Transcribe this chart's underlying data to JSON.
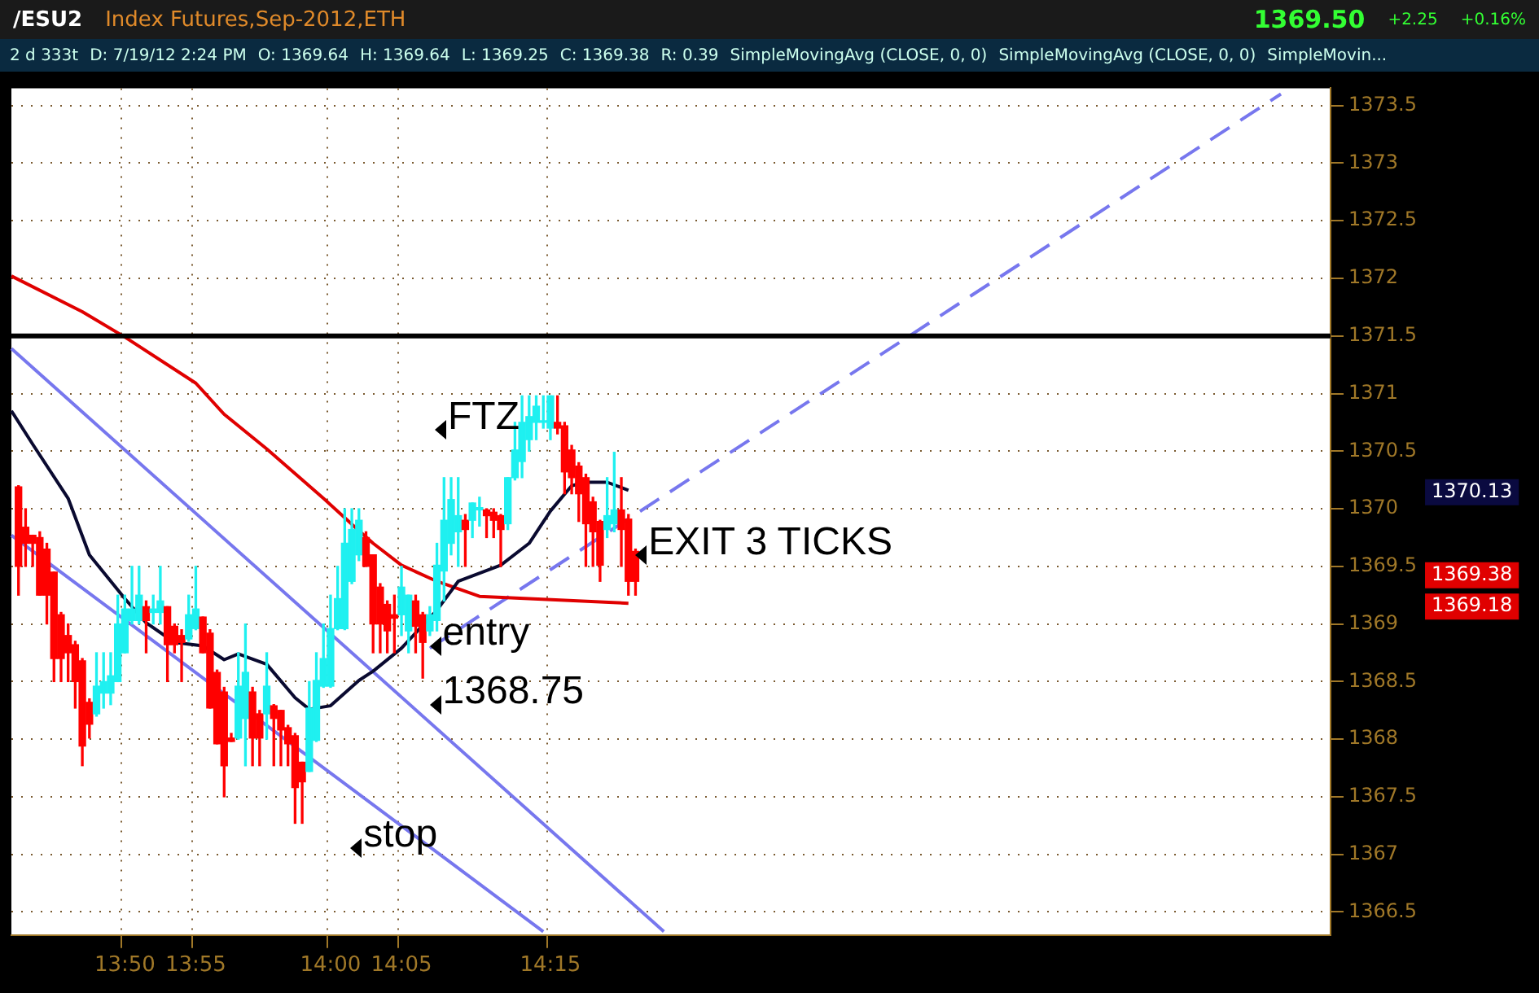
{
  "chart_data": {
    "type": "candlestick",
    "title": "/ESU2",
    "subtitle": "Index Futures,Sep-2012,ETH",
    "categories": [
      null,
      null,
      null,
      null,
      null,
      null,
      null,
      null,
      null,
      null,
      null,
      null,
      null,
      null,
      null,
      null,
      "13:50",
      null,
      null,
      null,
      null,
      null,
      null,
      null,
      null,
      null,
      "13:55",
      null,
      null,
      null,
      null,
      null,
      null,
      null,
      null,
      null,
      null,
      null,
      null,
      null,
      null,
      null,
      null,
      null,
      null,
      "14:00",
      null,
      null,
      null,
      null,
      null,
      null,
      null,
      null,
      null,
      "14:05",
      null,
      null,
      null,
      null,
      null,
      null,
      null,
      null,
      null,
      null,
      null,
      null,
      null,
      null,
      null,
      null,
      null,
      null,
      null,
      null,
      "14:15",
      null,
      null,
      null,
      null,
      null,
      null,
      null,
      null,
      null,
      null,
      null,
      null,
      null,
      null,
      null,
      null,
      null,
      null,
      null,
      null,
      null,
      null,
      null,
      null,
      null,
      null,
      null,
      null,
      null,
      null,
      null,
      null,
      null,
      null,
      null,
      null,
      null,
      null,
      null,
      null,
      null,
      null,
      null,
      null,
      null,
      null,
      null,
      null,
      null,
      null,
      null,
      null,
      null,
      null,
      null,
      null,
      null,
      null,
      null,
      null,
      null,
      null,
      null,
      null,
      null,
      null,
      null,
      null,
      null,
      null,
      null,
      null,
      null,
      null,
      null,
      null,
      null,
      null,
      null,
      null,
      null,
      null,
      null,
      null,
      null,
      null,
      null,
      null,
      null,
      null,
      null,
      null,
      null,
      null,
      null,
      null,
      null,
      null,
      null,
      null,
      null,
      null,
      null,
      null,
      null,
      null,
      null,
      null,
      null,
      null
    ],
    "ohlc": [
      null,
      [
        1370.19,
        1370.2,
        1369.25,
        1369.5
      ],
      [
        1369.84,
        1370.0,
        1369.5,
        1369.7
      ],
      [
        1369.77,
        1369.77,
        1369.5,
        1369.7
      ],
      [
        1369.75,
        1369.8,
        1369.25,
        1369.25
      ],
      [
        1369.65,
        1369.7,
        1369.0,
        1369.25
      ],
      [
        1369.45,
        1369.45,
        1368.5,
        1368.7
      ],
      [
        1369.08,
        1369.1,
        1368.5,
        1368.7
      ],
      [
        1368.9,
        1369.0,
        1368.5,
        1368.75
      ],
      [
        1368.82,
        1368.85,
        1368.27,
        1368.5
      ],
      [
        1368.68,
        1368.7,
        1367.77,
        1367.94
      ],
      [
        1368.32,
        1368.35,
        1368.01,
        1368.13
      ],
      [
        1368.22,
        1368.75,
        1368.2,
        1368.46
      ],
      [
        1368.4,
        1368.75,
        1368.27,
        1368.5
      ],
      [
        1368.4,
        1368.75,
        1368.3,
        1368.55
      ],
      [
        1368.5,
        1369.25,
        1368.5,
        1369.0
      ],
      [
        1368.75,
        1369.25,
        1368.75,
        1369.13
      ],
      [
        1369.03,
        1369.5,
        1369.0,
        1369.13
      ],
      [
        1369.03,
        1369.5,
        1369.0,
        1369.25
      ],
      [
        1369.15,
        1369.2,
        1368.75,
        1369.03
      ],
      [
        1369.1,
        1369.25,
        1369.0,
        1369.13
      ],
      [
        1369.1,
        1369.5,
        1369.0,
        1369.2
      ],
      [
        1369.15,
        1369.15,
        1368.5,
        1368.82
      ],
      [
        1368.98,
        1369.0,
        1368.75,
        1368.82
      ],
      [
        1368.9,
        1368.95,
        1368.5,
        1368.84
      ],
      [
        1368.87,
        1369.25,
        1368.85,
        1369.08
      ],
      [
        1368.96,
        1369.5,
        1368.95,
        1369.13
      ],
      [
        1369.06,
        1369.06,
        1368.75,
        1368.75
      ],
      [
        1368.92,
        1368.95,
        1368.27,
        1368.27
      ],
      [
        1368.58,
        1368.6,
        1367.96,
        1367.96
      ],
      [
        1368.41,
        1368.45,
        1367.5,
        1367.77
      ],
      [
        1368.01,
        1368.05,
        1367.98,
        1367.98
      ],
      [
        1368.01,
        1368.75,
        1368.0,
        1368.46
      ],
      [
        1368.18,
        1369.0,
        1367.77,
        1368.58
      ],
      [
        1368.41,
        1368.45,
        1367.77,
        1368.01
      ],
      [
        1368.22,
        1368.25,
        1367.77,
        1368.01
      ],
      [
        1368.22,
        1368.75,
        1368.0,
        1368.46
      ],
      [
        1368.29,
        1368.3,
        1367.77,
        1368.18
      ],
      [
        1368.25,
        1368.25,
        1367.77,
        1368.08
      ],
      [
        1368.1,
        1368.12,
        1367.77,
        1367.96
      ],
      [
        1368.03,
        1368.05,
        1367.27,
        1367.58
      ],
      [
        1367.8,
        1367.8,
        1367.27,
        1367.63
      ],
      [
        1367.72,
        1368.5,
        1367.72,
        1368.27
      ],
      [
        1367.99,
        1368.75,
        1367.98,
        1368.51
      ],
      [
        1368.46,
        1369.0,
        1368.45,
        1368.7
      ],
      [
        1368.46,
        1369.25,
        1368.45,
        1368.96
      ],
      [
        1368.96,
        1369.5,
        1368.95,
        1369.22
      ],
      [
        1368.96,
        1370.0,
        1368.95,
        1369.7
      ],
      [
        1369.37,
        1370.0,
        1369.35,
        1369.82
      ],
      [
        1369.6,
        1370.0,
        1369.55,
        1369.9
      ],
      [
        1369.75,
        1369.8,
        1369.5,
        1369.5
      ],
      [
        1369.6,
        1369.6,
        1368.75,
        1369.0
      ],
      [
        1369.32,
        1369.35,
        1368.75,
        1369.0
      ],
      [
        1369.17,
        1369.2,
        1368.75,
        1368.94
      ],
      [
        1369.08,
        1369.25,
        1368.75,
        1369.05
      ],
      [
        1369.08,
        1369.5,
        1368.9,
        1369.32
      ],
      [
        1368.94,
        1369.25,
        1368.75,
        1369.25
      ],
      [
        1369.2,
        1369.25,
        1368.75,
        1368.98
      ],
      [
        1369.08,
        1369.1,
        1368.53,
        1368.84
      ],
      [
        1368.94,
        1369.15,
        1368.9,
        1369.08
      ],
      [
        1369.03,
        1369.7,
        1368.94,
        1369.51
      ],
      [
        1369.46,
        1370.27,
        1369.2,
        1369.9
      ],
      [
        1369.7,
        1370.27,
        1369.6,
        1370.08
      ],
      [
        1369.8,
        1370.27,
        1369.5,
        1369.94
      ],
      [
        1369.9,
        1369.95,
        1369.5,
        1369.82
      ],
      [
        1369.9,
        1370.05,
        1369.75,
        1370.05
      ],
      [
        1369.99,
        1370.1,
        1369.85,
        1370.01
      ],
      [
        1369.99,
        1370.0,
        1369.75,
        1369.94
      ],
      [
        1369.97,
        1370.0,
        1369.75,
        1369.9
      ],
      [
        1369.94,
        1369.95,
        1369.5,
        1369.82
      ],
      [
        1369.87,
        1370.27,
        1369.82,
        1370.27
      ],
      [
        1370.27,
        1370.75,
        1370.25,
        1370.51
      ],
      [
        1370.41,
        1370.98,
        1370.27,
        1370.75
      ],
      [
        1370.6,
        1370.98,
        1370.5,
        1370.8
      ],
      [
        1370.75,
        1370.98,
        1370.6,
        1370.89
      ],
      [
        1370.75,
        1370.98,
        1370.7,
        1370.76
      ],
      [
        1370.7,
        1370.98,
        1370.6,
        1370.98
      ],
      [
        1370.75,
        1370.98,
        1370.65,
        1370.7
      ],
      [
        1370.72,
        1370.75,
        1370.13,
        1370.32
      ],
      [
        1370.51,
        1370.55,
        1370.13,
        1370.27
      ],
      [
        1370.37,
        1370.4,
        1369.89,
        1370.13
      ],
      [
        1370.27,
        1370.3,
        1369.5,
        1369.87
      ],
      [
        1370.06,
        1370.1,
        1369.5,
        1369.8
      ],
      [
        1369.89,
        1369.9,
        1369.37,
        1369.51
      ],
      [
        1369.82,
        1370.27,
        1369.75,
        1369.94
      ],
      [
        1369.87,
        1370.49,
        1369.8,
        1369.99
      ],
      [
        1369.99,
        1370.27,
        1369.5,
        1369.82
      ],
      [
        1369.91,
        1369.95,
        1369.25,
        1369.37
      ],
      [
        1369.63,
        1369.65,
        1369.25,
        1369.37
      ],
      null,
      null,
      null,
      null,
      null,
      null,
      null,
      null,
      null,
      null,
      null,
      null,
      null,
      null,
      null,
      null,
      null,
      null,
      null,
      null,
      null,
      null,
      null,
      null,
      null,
      null,
      null,
      null,
      null,
      null,
      null,
      null,
      null,
      null,
      null,
      null,
      null,
      null,
      null,
      null,
      null,
      null,
      null,
      null,
      null,
      null,
      null,
      null,
      null,
      null,
      null,
      null,
      null,
      null,
      null,
      null,
      null,
      null,
      null,
      null,
      null,
      null,
      null,
      null,
      null,
      null,
      null,
      null,
      null,
      null,
      null,
      null,
      null,
      null,
      null,
      null,
      null,
      null,
      null,
      null,
      null,
      null,
      null,
      null,
      null,
      null,
      null,
      null,
      null,
      null,
      null,
      null,
      null,
      null,
      null,
      null,
      null,
      null
    ],
    "colors": [
      null,
      "#ff0000",
      "#ff0000",
      "#ff0000",
      "#ff0000",
      "#ff0000",
      "#ff0000",
      "#ff0000",
      "#ff0000",
      "#ff0000",
      "#ff0000",
      "#ff0000",
      "#1ff0f0",
      "#1ff0f0",
      "#1ff0f0",
      "#1ff0f0",
      "#1ff0f0",
      "#1ff0f0",
      "#1ff0f0",
      "#ff0000",
      "#1ff0f0",
      "#1ff0f0",
      "#ff0000",
      "#ff0000",
      "#ff0000",
      "#1ff0f0",
      "#1ff0f0",
      "#ff0000",
      "#ff0000",
      "#ff0000",
      "#ff0000",
      "#ff0000",
      "#1ff0f0",
      "#1ff0f0",
      "#ff0000",
      "#ff0000",
      "#1ff0f0",
      "#ff0000",
      "#ff0000",
      "#ff0000",
      "#ff0000",
      "#ff0000",
      "#1ff0f0",
      "#1ff0f0",
      "#1ff0f0",
      "#1ff0f0",
      "#1ff0f0",
      "#1ff0f0",
      "#1ff0f0",
      "#1ff0f0",
      "#ff0000",
      "#ff0000",
      "#ff0000",
      "#ff0000",
      "#ff0000",
      "#1ff0f0",
      "#1ff0f0",
      "#ff0000",
      "#ff0000",
      "#1ff0f0",
      "#1ff0f0",
      "#1ff0f0",
      "#1ff0f0",
      "#1ff0f0",
      "#ff0000",
      "#1ff0f0",
      "#1ff0f0",
      "#ff0000",
      "#ff0000",
      "#ff0000",
      "#1ff0f0",
      "#1ff0f0",
      "#1ff0f0",
      "#1ff0f0",
      "#1ff0f0",
      "#1ff0f0",
      "#1ff0f0",
      "#ff0000",
      "#ff0000",
      "#ff0000",
      "#ff0000",
      "#ff0000",
      "#ff0000",
      "#ff0000",
      "#1ff0f0",
      "#1ff0f0",
      "#ff0000",
      "#ff0000",
      "#ff0000",
      null,
      null,
      null,
      null,
      null,
      null,
      null,
      null,
      null,
      null,
      null,
      null,
      null,
      null,
      null,
      null,
      null,
      null,
      null,
      null,
      null,
      null,
      null,
      null,
      null,
      null,
      null,
      null,
      null,
      null,
      null,
      null,
      null,
      null,
      null,
      null,
      null,
      null,
      null,
      null,
      null,
      null,
      null,
      null,
      null,
      null,
      null,
      null,
      null,
      null,
      null,
      null,
      null,
      null,
      null,
      null,
      null,
      null,
      null,
      null,
      null,
      null,
      null,
      null,
      null,
      null,
      null,
      null,
      null,
      null,
      null,
      null,
      null,
      null,
      null,
      null,
      null,
      null,
      null,
      null,
      null,
      null,
      null,
      null,
      null,
      null,
      null,
      null,
      null,
      null,
      null,
      null,
      null,
      null,
      null,
      null,
      null,
      null
    ],
    "series": [
      {
        "type": "line",
        "color": "#0a0a30",
        "values": [
          1370.85,
          null,
          null,
          1370.56,
          null,
          null,
          null,
          null,
          1370.09,
          null,
          null,
          1369.6,
          null,
          null,
          null,
          null,
          1369.22,
          null,
          null,
          1369.01,
          null,
          null,
          null,
          1368.84,
          null,
          null,
          null,
          1368.81,
          null,
          null,
          1368.69,
          null,
          1368.74,
          null,
          null,
          null,
          1368.65,
          null,
          null,
          null,
          1368.36,
          null,
          1368.26,
          null,
          null,
          1368.29,
          null,
          null,
          null,
          1368.51,
          null,
          1368.59,
          null,
          null,
          null,
          1368.79,
          null,
          null,
          null,
          null,
          1369.12,
          null,
          null,
          1369.37,
          null,
          null,
          null,
          null,
          null,
          1369.51,
          null,
          null,
          null,
          1369.7,
          null,
          null,
          1369.98,
          null,
          null,
          1370.2,
          null,
          1370.23,
          null,
          null,
          1370.23,
          null,
          null,
          1370.16,
          null,
          null,
          null,
          null,
          null,
          null,
          null,
          null,
          null,
          null,
          null,
          null,
          null,
          null,
          null,
          null,
          null,
          null,
          null,
          null,
          null,
          null,
          null,
          null,
          null,
          null,
          null,
          null,
          null,
          null,
          null,
          null,
          null,
          null,
          null,
          null,
          null,
          null,
          null,
          null,
          null,
          null,
          null,
          null,
          null,
          null,
          null,
          null,
          null,
          null,
          null,
          null,
          null,
          null,
          null,
          null,
          null,
          null,
          null,
          null,
          null,
          null,
          null,
          null,
          null,
          null,
          null,
          null,
          null,
          null,
          null,
          null,
          null,
          null,
          null,
          null,
          null,
          null,
          null,
          null,
          null,
          null,
          null,
          null,
          null,
          null,
          null,
          null,
          null,
          null,
          null,
          null,
          null,
          null,
          null,
          null,
          null,
          null,
          null
        ]
      },
      {
        "type": "line",
        "color": "#e00000",
        "values": [
          1372.02,
          null,
          null,
          null,
          null,
          null,
          null,
          null,
          null,
          null,
          1371.71,
          null,
          null,
          null,
          null,
          null,
          1371.49,
          null,
          null,
          null,
          null,
          null,
          null,
          null,
          null,
          null,
          1371.09,
          null,
          null,
          null,
          1370.82,
          null,
          null,
          null,
          null,
          null,
          1370.52,
          null,
          null,
          null,
          null,
          null,
          null,
          null,
          1370.09,
          null,
          null,
          null,
          null,
          1369.81,
          null,
          1369.7,
          null,
          null,
          null,
          1369.51,
          null,
          null,
          null,
          null,
          1369.37,
          null,
          null,
          null,
          null,
          null,
          1369.24,
          null,
          null,
          null,
          null,
          null,
          null,
          1369.22,
          null,
          null,
          null,
          null,
          null,
          null,
          null,
          null,
          null,
          null,
          null,
          null,
          null,
          1369.18,
          null,
          null,
          null,
          null,
          null,
          null,
          null,
          null,
          null,
          null,
          null,
          null,
          null,
          null,
          null,
          null,
          null,
          null,
          null,
          null,
          null,
          null,
          null,
          null,
          null,
          null,
          null,
          null,
          null,
          null,
          null,
          null,
          null,
          null,
          null,
          null,
          null,
          null,
          null,
          null,
          null,
          null,
          null,
          null,
          null,
          null,
          null,
          null,
          null,
          null,
          null,
          null,
          null,
          null,
          null,
          null,
          null,
          null,
          null,
          null,
          null,
          null,
          null,
          null,
          null,
          null,
          null,
          null,
          null,
          null,
          null,
          null,
          null,
          null,
          null,
          null,
          null,
          null,
          null,
          null,
          null,
          null,
          null,
          null,
          null,
          null,
          null,
          null,
          null,
          null,
          null,
          null,
          null,
          null,
          null,
          null,
          null,
          null,
          null
        ]
      },
      {
        "type": "line",
        "color": "#7777ee",
        "values": [
          1371.39,
          null,
          null,
          null,
          null,
          null,
          null,
          null,
          null,
          null,
          null,
          null,
          null,
          null,
          null,
          null,
          null,
          null,
          null,
          null,
          null,
          null,
          null,
          null,
          null,
          null,
          null,
          null,
          null,
          null,
          null,
          null,
          null,
          null,
          null,
          null,
          null,
          null,
          null,
          null,
          null,
          null,
          null,
          null,
          null,
          null,
          null,
          null,
          null,
          null,
          null,
          null,
          null,
          null,
          null,
          null,
          null,
          null,
          null,
          null,
          null,
          null,
          null,
          null,
          null,
          null,
          null,
          null,
          null,
          null,
          null,
          null,
          null,
          null,
          null,
          null,
          null,
          null,
          null,
          null,
          null,
          null,
          null,
          null,
          null,
          null,
          null,
          null,
          null,
          null,
          null,
          null,
          1366.33,
          null,
          null,
          null,
          null,
          null,
          null,
          null,
          null,
          null,
          null,
          null,
          null,
          null,
          null,
          null,
          null,
          null,
          null,
          null,
          null,
          null,
          null,
          null,
          null,
          null,
          null,
          null,
          null,
          null,
          null,
          null,
          null,
          null,
          null,
          null,
          null,
          null,
          null,
          null,
          null,
          null,
          null,
          null,
          null,
          null,
          null,
          null,
          null,
          null,
          null,
          null,
          null,
          null,
          null,
          null,
          null,
          null,
          null,
          null,
          null,
          null,
          null,
          null,
          null,
          null,
          null,
          null,
          null,
          null,
          null,
          null,
          null,
          null,
          null,
          null,
          null,
          null,
          null,
          null,
          null,
          null,
          null,
          null,
          null,
          null,
          null,
          null,
          null,
          null,
          null,
          null,
          null,
          null,
          null
        ]
      },
      {
        "type": "line",
        "color": "#7777ee",
        "values": [
          1369.77,
          null,
          null,
          null,
          null,
          null,
          null,
          null,
          null,
          null,
          null,
          null,
          null,
          null,
          null,
          null,
          null,
          null,
          null,
          null,
          null,
          null,
          null,
          null,
          null,
          null,
          null,
          null,
          null,
          null,
          null,
          null,
          null,
          null,
          null,
          null,
          null,
          null,
          null,
          null,
          null,
          null,
          null,
          null,
          null,
          null,
          null,
          null,
          null,
          null,
          null,
          null,
          null,
          null,
          null,
          null,
          null,
          null,
          null,
          null,
          null,
          null,
          null,
          null,
          null,
          null,
          null,
          null,
          null,
          null,
          null,
          null,
          null,
          null,
          null,
          1366.33,
          null,
          null,
          null,
          null,
          null,
          null,
          null,
          null,
          null,
          null,
          null,
          null,
          null,
          null,
          null,
          null,
          null,
          null,
          null,
          null,
          null,
          null,
          null,
          null,
          null,
          null,
          null,
          null,
          null,
          null,
          null,
          null,
          null,
          null,
          null,
          null,
          null,
          null,
          null,
          null,
          null,
          null,
          null,
          null,
          null,
          null,
          null,
          null,
          null,
          null,
          null,
          null,
          null,
          null,
          null,
          null,
          null,
          null,
          null,
          null,
          null,
          null,
          null,
          null,
          null,
          null,
          null,
          null,
          null,
          null,
          null,
          null,
          null,
          null,
          null,
          null,
          null,
          null,
          null,
          null,
          null,
          null,
          null,
          null,
          null,
          null,
          null,
          null,
          null,
          null,
          null,
          null,
          null,
          null,
          null,
          null,
          null,
          null,
          null,
          null,
          null,
          null,
          null,
          null,
          null,
          null,
          null,
          null,
          null,
          null,
          null
        ]
      },
      {
        "type": "line",
        "color": "#7777ee",
        "line_style": "dashed",
        "values": [
          null,
          null,
          null,
          null,
          null,
          null,
          null,
          null,
          null,
          null,
          null,
          null,
          null,
          null,
          null,
          null,
          null,
          null,
          null,
          null,
          null,
          null,
          null,
          null,
          null,
          null,
          null,
          null,
          null,
          null,
          null,
          null,
          null,
          null,
          null,
          null,
          null,
          null,
          null,
          null,
          null,
          null,
          null,
          null,
          null,
          null,
          null,
          null,
          null,
          null,
          null,
          null,
          null,
          null,
          null,
          null,
          null,
          null,
          null,
          1368.79,
          null,
          null,
          null,
          null,
          null,
          null,
          null,
          null,
          null,
          null,
          null,
          null,
          null,
          null,
          null,
          null,
          null,
          null,
          null,
          null,
          null,
          null,
          null,
          null,
          null,
          null,
          null,
          null,
          null,
          null,
          null,
          null,
          null,
          null,
          null,
          null,
          null,
          null,
          null,
          null,
          null,
          null,
          null,
          null,
          null,
          null,
          null,
          null,
          null,
          null,
          null,
          null,
          null,
          null,
          null,
          null,
          null,
          null,
          null,
          null,
          null,
          null,
          null,
          null,
          null,
          null,
          null,
          null,
          null,
          null,
          null,
          null,
          null,
          null,
          null,
          null,
          null,
          null,
          null,
          null,
          null,
          null,
          null,
          null,
          null,
          null,
          null,
          null,
          null,
          null,
          null,
          null,
          null,
          null,
          null,
          null,
          null,
          null,
          null,
          null,
          null,
          null,
          null,
          null,
          null,
          null,
          null,
          null,
          null,
          null,
          null,
          null,
          null,
          null,
          null,
          null,
          null,
          null,
          null,
          1373.6,
          null,
          null,
          null,
          null,
          null,
          null,
          null
        ]
      }
    ],
    "ref_lines": [
      {
        "axis": "y",
        "value": 1371.5,
        "color": "#000000"
      }
    ],
    "annotations": [
      "2 d 333t",
      "D: 7/19/12 2:24 PM",
      "O: 1369.64",
      "H: 1369.64",
      "L: 1369.25",
      "C: 1369.38",
      "R: 0.39",
      "SimpleMovingAvg (CLOSE, 0, 0)",
      "SimpleMovingAvg (CLOSE, 0, 0)",
      "SimpleMovin...",
      "1369.50",
      "+2.25",
      "+0.16%",
      "FTZ",
      "entry",
      "1368.75",
      "stop",
      "EXIT 3 TICKS",
      "1370.13",
      "1369.38",
      "1369.18"
    ],
    "ylim": [
      1366.3,
      1373.65
    ],
    "yticks": [
      1366.5,
      1367,
      1367.5,
      1368,
      1368.5,
      1369,
      1369.5,
      1370,
      1370.5,
      1371,
      1371.5,
      1372,
      1372.5,
      1373,
      1373.5
    ],
    "grid": true,
    "legend": false,
    "marker": "none"
  }
}
